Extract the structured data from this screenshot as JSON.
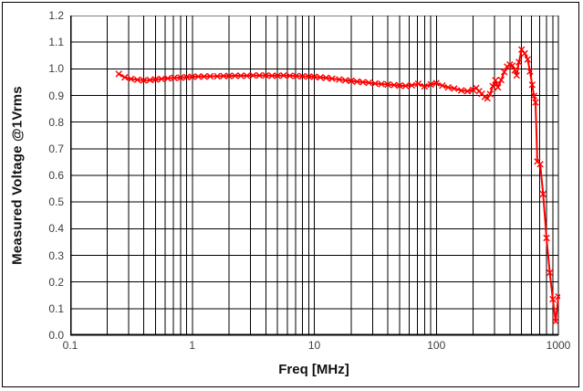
{
  "chart_data": {
    "type": "line",
    "title": "",
    "xlabel": "Freq [MHz]",
    "ylabel": "Measured Voltage @1Vrms",
    "x_scale": "log",
    "xlim": [
      0.1,
      1000
    ],
    "ylim": [
      0.0,
      1.2
    ],
    "x_ticks": [
      "0.1",
      "1",
      "10",
      "100",
      "1000"
    ],
    "y_ticks": [
      "0.0",
      "0.1",
      "0.2",
      "0.3",
      "0.4",
      "0.5",
      "0.6",
      "0.7",
      "0.8",
      "0.9",
      "1.0",
      "1.1",
      "1.2"
    ],
    "grid": {
      "color": "#000000",
      "horizontal_step": 0.1,
      "vertical": "log-decades-with-minors",
      "legend_position": "none"
    },
    "colors": {
      "series": "#ff0000",
      "axis": "#000000",
      "tick_text": "#3d3d3d",
      "title_text": "#111111",
      "background": "#ffffff"
    },
    "series": [
      {
        "name": "measured-voltage",
        "color": "#ff0000",
        "marker": "x",
        "points": [
          [
            0.25,
            0.981
          ],
          [
            0.28,
            0.968
          ],
          [
            0.315,
            0.962
          ],
          [
            0.355,
            0.959
          ],
          [
            0.4,
            0.957
          ],
          [
            0.45,
            0.958
          ],
          [
            0.5,
            0.96
          ],
          [
            0.56,
            0.962
          ],
          [
            0.63,
            0.964
          ],
          [
            0.71,
            0.966
          ],
          [
            0.8,
            0.967
          ],
          [
            0.9,
            0.969
          ],
          [
            1.0,
            0.97
          ],
          [
            1.12,
            0.971
          ],
          [
            1.25,
            0.971
          ],
          [
            1.4,
            0.972
          ],
          [
            1.6,
            0.972
          ],
          [
            1.8,
            0.973
          ],
          [
            2.0,
            0.973
          ],
          [
            2.24,
            0.974
          ],
          [
            2.5,
            0.974
          ],
          [
            2.8,
            0.974
          ],
          [
            3.15,
            0.975
          ],
          [
            3.55,
            0.975
          ],
          [
            4.0,
            0.975
          ],
          [
            4.5,
            0.974
          ],
          [
            5.0,
            0.974
          ],
          [
            5.6,
            0.975
          ],
          [
            6.3,
            0.974
          ],
          [
            7.1,
            0.973
          ],
          [
            8.0,
            0.972
          ],
          [
            9.0,
            0.971
          ],
          [
            10,
            0.97
          ],
          [
            11.2,
            0.968
          ],
          [
            12.5,
            0.966
          ],
          [
            14,
            0.963
          ],
          [
            16,
            0.96
          ],
          [
            18,
            0.957
          ],
          [
            20,
            0.955
          ],
          [
            22.4,
            0.952
          ],
          [
            25,
            0.95
          ],
          [
            28,
            0.948
          ],
          [
            31.5,
            0.945
          ],
          [
            35.5,
            0.943
          ],
          [
            40,
            0.941
          ],
          [
            45,
            0.939
          ],
          [
            50,
            0.937
          ],
          [
            56,
            0.936
          ],
          [
            63,
            0.938
          ],
          [
            71,
            0.944
          ],
          [
            80,
            0.934
          ],
          [
            90,
            0.941
          ],
          [
            100,
            0.946
          ],
          [
            112,
            0.937
          ],
          [
            125,
            0.93
          ],
          [
            140,
            0.926
          ],
          [
            160,
            0.919
          ],
          [
            180,
            0.916
          ],
          [
            200,
            0.921
          ],
          [
            212,
            0.928
          ],
          [
            224,
            0.916
          ],
          [
            236,
            0.906
          ],
          [
            250,
            0.895
          ],
          [
            262,
            0.889
          ],
          [
            276,
            0.905
          ],
          [
            290,
            0.935
          ],
          [
            305,
            0.957
          ],
          [
            320,
            0.93
          ],
          [
            340,
            0.958
          ],
          [
            360,
            0.988
          ],
          [
            380,
            1.008
          ],
          [
            400,
            1.016
          ],
          [
            420,
            1.012
          ],
          [
            440,
            0.995
          ],
          [
            455,
            0.975
          ],
          [
            475,
            1.025
          ],
          [
            500,
            1.072
          ],
          [
            530,
            1.058
          ],
          [
            560,
            1.035
          ],
          [
            585,
            0.99
          ],
          [
            610,
            0.94
          ],
          [
            632,
            0.898
          ],
          [
            650,
            0.874
          ],
          [
            672,
            0.652
          ],
          [
            710,
            0.642
          ],
          [
            750,
            0.53
          ],
          [
            800,
            0.365
          ],
          [
            850,
            0.235
          ],
          [
            900,
            0.135
          ],
          [
            950,
            0.052
          ],
          [
            1000,
            0.145
          ]
        ]
      }
    ]
  }
}
